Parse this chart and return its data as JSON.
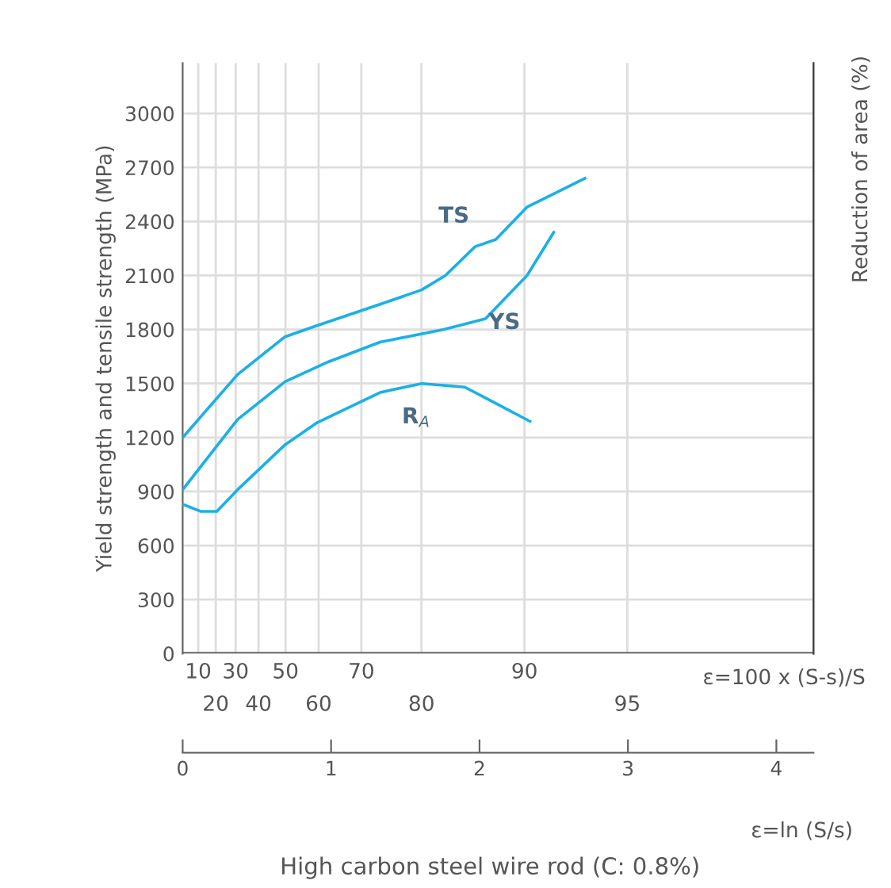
{
  "chart_data": {
    "type": "line",
    "annotations": [
      "TS",
      "YS",
      "R$_{A}$",
      "ε=100 x (S-s)/S",
      "High carbon steel wire rod (C: 0.8%)",
      "10",
      "20",
      "30",
      "40",
      "50",
      "60",
      "70",
      "80",
      "90",
      "95"
    ],
    "ylabel": "Yield strength and tensile strength (MPa)",
    "y2label": "Reduction of area (%)",
    "xlabel": "ε=ln (S/s)",
    "xlim": [
      0,
      4.25
    ],
    "ylim": [
      0,
      3280
    ],
    "xticks": [
      0,
      1,
      2,
      3,
      4
    ],
    "yticks": [
      0,
      300,
      600,
      900,
      1200,
      1500,
      1800,
      2100,
      2400,
      2700,
      3000
    ],
    "grid": "y",
    "marker": "none",
    "line_style": "solid",
    "ref_lines": [
      {
        "axis": "x",
        "value": 0.105
      },
      {
        "axis": "x",
        "value": 0.223
      },
      {
        "axis": "x",
        "value": 0.357
      },
      {
        "axis": "x",
        "value": 0.511
      },
      {
        "axis": "x",
        "value": 0.693
      },
      {
        "axis": "x",
        "value": 0.916
      },
      {
        "axis": "x",
        "value": 1.204
      },
      {
        "axis": "x",
        "value": 1.609
      },
      {
        "axis": "x",
        "value": 2.303
      },
      {
        "axis": "x",
        "value": 2.996
      }
    ],
    "series": [
      {
        "color": "#1ab0e8",
        "x": [
          0,
          0.37,
          0.69,
          0.9,
          1.33,
          1.61,
          1.77,
          1.97,
          2.11,
          2.32,
          2.71
        ],
        "values": [
          1200,
          1550,
          1760,
          1820,
          1940,
          2020,
          2100,
          2260,
          2300,
          2480,
          2640
        ]
      },
      {
        "color": "#1ab0e8",
        "x": [
          0,
          0.37,
          0.69,
          0.98,
          1.33,
          1.76,
          2.04,
          2.32,
          2.5
        ],
        "values": [
          910,
          1300,
          1510,
          1620,
          1730,
          1800,
          1860,
          2100,
          2340
        ]
      },
      {
        "color": "#1ab0e8",
        "x": [
          0,
          0.12,
          0.23,
          0.37,
          0.69,
          0.9,
          1.33,
          1.61,
          1.9,
          2.04,
          2.34
        ],
        "values": [
          830,
          790,
          790,
          910,
          1160,
          1280,
          1450,
          1500,
          1480,
          1420,
          1290
        ]
      }
    ]
  }
}
